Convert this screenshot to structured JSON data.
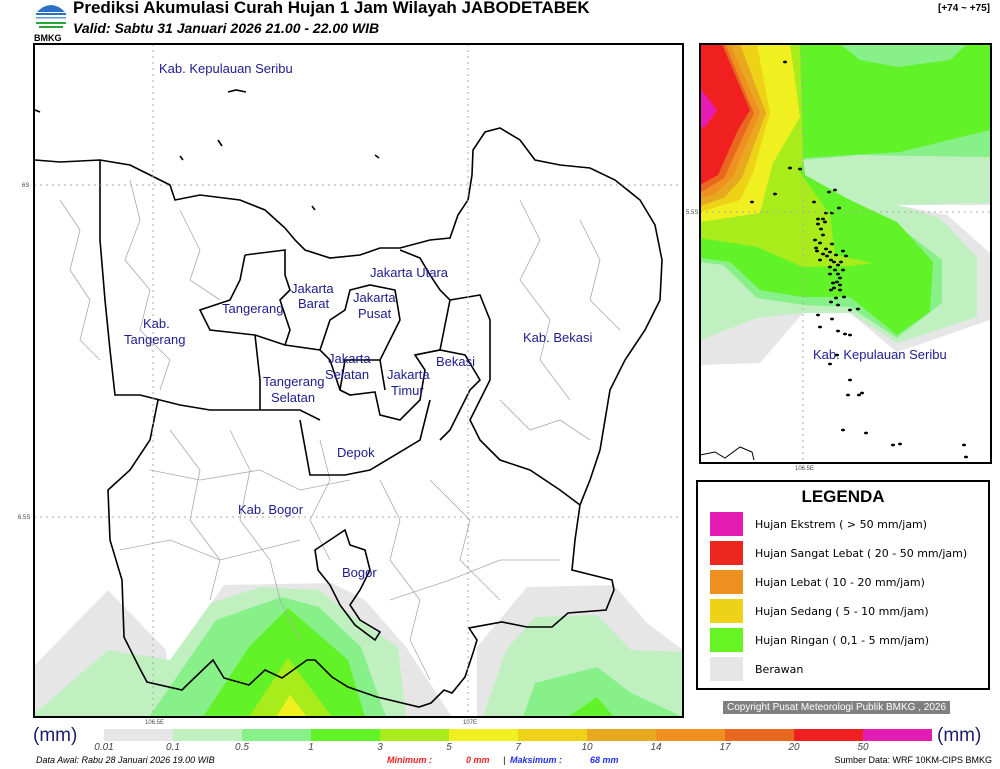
{
  "header": {
    "title": "Prediksi Akumulasi Curah Hujan 1 Jam Wilayah JABODETABEK",
    "subtitle": "Valid: Sabtu 31 Januari 2026 21.00 - 22.00 WIB",
    "range": "[+74 ~ +75]",
    "logo_text": "BMKG"
  },
  "map": {
    "labels": {
      "kep_seribu": "Kab. Kepulauan Seribu",
      "jakut": "Jakarta Utara",
      "jakbar1": "Jakarta",
      "jakbar2": "Barat",
      "jakpus1": "Jakarta",
      "jakpus2": "Pusat",
      "tangerang": "Tangerang",
      "kabtang1": "Kab.",
      "kabtang2": "Tangerang",
      "kabbekasi": "Kab. Bekasi",
      "jaksel1": "Jakarta",
      "jaksel2": "Selatan",
      "bekasi": "Bekasi",
      "jaktim1": "Jakarta",
      "jaktim2": "Timur",
      "tangsel1": "Tangerang",
      "tangsel2": "Selatan",
      "depok": "Depok",
      "kabbogor": "Kab. Bogor",
      "bogor": "Bogor"
    },
    "ticks": {
      "lat1": "6S",
      "lat2": "6.5S",
      "lon1": "106.5E",
      "lon2": "107E"
    }
  },
  "inset": {
    "label": "Kab. Kepulauan Seribu",
    "lat": "5.5S",
    "lon": "106.5E"
  },
  "legend": {
    "title": "LEGENDA",
    "items": [
      {
        "label": "Hujan Ekstrem ( > 50 mm/jam)",
        "color": "#e41cb4"
      },
      {
        "label": "Hujan Sangat Lebat ( 20 - 50 mm/jam)",
        "color": "#ee2620"
      },
      {
        "label": "Hujan Lebat ( 10 - 20 mm/jam)",
        "color": "#ee9020"
      },
      {
        "label": "Hujan Sedang ( 5 - 10 mm/jam)",
        "color": "#eed218"
      },
      {
        "label": "Hujan Ringan ( 0,1 - 5 mm/jam)",
        "color": "#66f424"
      },
      {
        "label": "Berawan",
        "color": "#e6e6e6"
      }
    ]
  },
  "copyright": "Copyright Pusat Meteorologi Publik BMKG , 2026",
  "colorbar": {
    "unit": "(mm)",
    "colors": [
      "#e6e6e6",
      "#c0f0c0",
      "#88f088",
      "#62f228",
      "#a8ec1c",
      "#f0f020",
      "#eed218",
      "#e8a820",
      "#f09020",
      "#e86820",
      "#f02020",
      "#e41cb4"
    ],
    "labels": [
      "0.01",
      "0.1",
      "0.5",
      "1",
      "3",
      "5",
      "7",
      "10",
      "14",
      "17",
      "20",
      "50"
    ]
  },
  "footer": {
    "data_awal": "Data Awal: Rabu 28 Januari 2026 19.00 WIB",
    "min_label": "Minimum :",
    "min_value": "0 mm",
    "sep": "|",
    "max_label": "Maksimum :",
    "max_value": "68 mm",
    "source": "Sumber Data: WRF 10KM-CIPS BMKG"
  }
}
